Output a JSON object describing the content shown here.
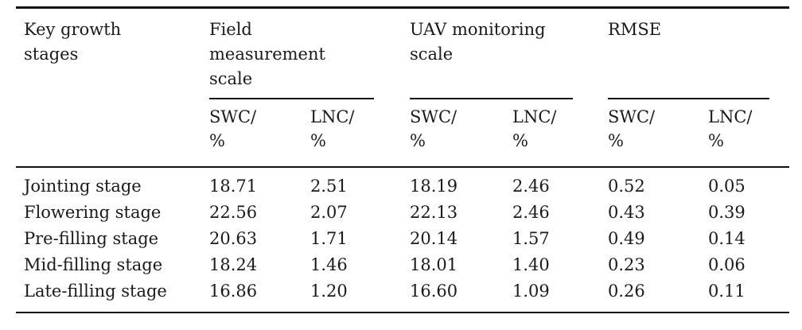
{
  "colors": {
    "text": "#1a1a1a",
    "rule": "#121212",
    "background": "#ffffff"
  },
  "table": {
    "stage_column_header": "Key growth\nstages",
    "groups": [
      {
        "label": "Field\nmeasurement\nscale",
        "subs": [
          "SWC/\n%",
          "LNC/\n%"
        ]
      },
      {
        "label": "UAV monitoring\nscale",
        "subs": [
          "SWC/\n%",
          "LNC/\n%"
        ]
      },
      {
        "label": "RMSE",
        "subs": [
          "SWC/\n%",
          "LNC/\n%"
        ]
      }
    ],
    "rows": [
      {
        "stage": "Jointing stage",
        "values": [
          "18.71",
          "2.51",
          "18.19",
          "2.46",
          "0.52",
          "0.05"
        ]
      },
      {
        "stage": "Flowering stage",
        "values": [
          "22.56",
          "2.07",
          "22.13",
          "2.46",
          "0.43",
          "0.39"
        ]
      },
      {
        "stage": "Pre-filling stage",
        "values": [
          "20.63",
          "1.71",
          "20.14",
          "1.57",
          "0.49",
          "0.14"
        ]
      },
      {
        "stage": "Mid-filling stage",
        "values": [
          "18.24",
          "1.46",
          "18.01",
          "1.40",
          "0.23",
          "0.06"
        ]
      },
      {
        "stage": "Late-filling stage",
        "values": [
          "16.86",
          "1.20",
          "16.60",
          "1.09",
          "0.26",
          "0.11"
        ]
      }
    ]
  }
}
